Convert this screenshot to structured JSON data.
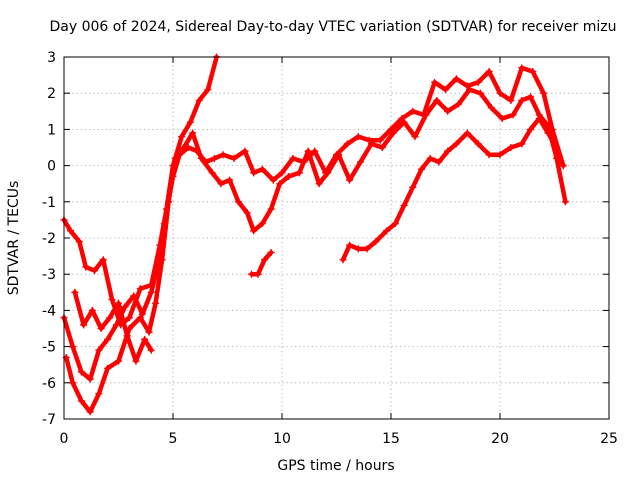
{
  "chart_data": {
    "type": "scatter",
    "title": "Day 006 of 2024, Sidereal Day-to-day VTEC variation (SDTVAR) for receiver mizu",
    "xlabel": "GPS time / hours",
    "ylabel": "SDTVAR / TECUs",
    "xlim": [
      0,
      25
    ],
    "ylim": [
      -7,
      3
    ],
    "xticks": [
      0,
      5,
      10,
      15,
      20,
      25
    ],
    "yticks": [
      -7,
      -6,
      -5,
      -4,
      -3,
      -2,
      -1,
      0,
      1,
      2,
      3
    ],
    "grid": true,
    "marker_color": "#ff0000",
    "marker": "plus",
    "series": [
      {
        "points": [
          [
            0.0,
            -1.5
          ],
          [
            0.3,
            -1.8
          ],
          [
            0.7,
            -2.1
          ],
          [
            1.0,
            -2.8
          ],
          [
            1.4,
            -2.9
          ],
          [
            1.8,
            -2.6
          ],
          [
            2.2,
            -3.7
          ],
          [
            2.6,
            -4.4
          ],
          [
            3.0,
            -4.2
          ],
          [
            3.5,
            -3.4
          ],
          [
            4.0,
            -3.3
          ],
          [
            4.4,
            -2.2
          ],
          [
            4.7,
            -1.2
          ],
          [
            5.0,
            0.0
          ],
          [
            5.4,
            0.8
          ],
          [
            5.8,
            1.2
          ],
          [
            6.2,
            1.8
          ],
          [
            6.6,
            2.1
          ],
          [
            7.0,
            3.0
          ]
        ]
      },
      {
        "points": [
          [
            0.0,
            -4.2
          ],
          [
            0.4,
            -5.0
          ],
          [
            0.8,
            -5.7
          ],
          [
            1.2,
            -5.9
          ],
          [
            1.6,
            -5.1
          ],
          [
            2.0,
            -4.8
          ],
          [
            2.4,
            -4.4
          ],
          [
            2.8,
            -3.9
          ],
          [
            3.2,
            -3.6
          ],
          [
            3.6,
            -4.1
          ],
          [
            4.0,
            -3.5
          ],
          [
            4.3,
            -2.8
          ],
          [
            4.6,
            -1.6
          ],
          [
            5.0,
            -0.3
          ],
          [
            5.3,
            0.3
          ],
          [
            5.7,
            0.5
          ],
          [
            6.1,
            0.4
          ],
          [
            6.5,
            0.1
          ],
          [
            6.9,
            0.2
          ],
          [
            7.3,
            0.3
          ],
          [
            7.8,
            0.2
          ],
          [
            8.3,
            0.4
          ],
          [
            8.7,
            -0.2
          ],
          [
            9.1,
            -0.1
          ],
          [
            9.6,
            -0.4
          ],
          [
            10.0,
            -0.2
          ],
          [
            10.5,
            0.2
          ],
          [
            11.0,
            0.1
          ],
          [
            11.5,
            0.4
          ],
          [
            12.0,
            -0.2
          ],
          [
            12.5,
            0.3
          ],
          [
            13.0,
            0.6
          ],
          [
            13.5,
            0.8
          ],
          [
            14.0,
            0.7
          ],
          [
            14.5,
            0.7
          ],
          [
            15.0,
            1.0
          ],
          [
            15.5,
            1.3
          ],
          [
            16.0,
            1.5
          ],
          [
            16.5,
            1.4
          ],
          [
            17.0,
            2.3
          ],
          [
            17.5,
            2.1
          ],
          [
            18.0,
            2.4
          ],
          [
            18.5,
            2.2
          ],
          [
            19.0,
            2.3
          ],
          [
            19.5,
            2.6
          ],
          [
            20.0,
            2.0
          ],
          [
            20.5,
            1.8
          ],
          [
            21.0,
            2.7
          ],
          [
            21.5,
            2.6
          ],
          [
            22.0,
            2.0
          ],
          [
            22.4,
            1.0
          ],
          [
            22.9,
            0.0
          ]
        ]
      },
      {
        "points": [
          [
            0.1,
            -5.3
          ],
          [
            0.4,
            -6.0
          ],
          [
            0.8,
            -6.5
          ],
          [
            1.2,
            -6.8
          ],
          [
            1.6,
            -6.3
          ],
          [
            2.0,
            -5.6
          ],
          [
            2.5,
            -5.4
          ],
          [
            3.0,
            -4.5
          ],
          [
            3.5,
            -4.2
          ],
          [
            3.9,
            -4.6
          ],
          [
            4.2,
            -3.8
          ],
          [
            4.5,
            -2.6
          ],
          [
            4.8,
            -1.0
          ],
          [
            5.1,
            0.2
          ],
          [
            5.5,
            0.5
          ],
          [
            5.9,
            0.9
          ],
          [
            6.3,
            0.2
          ],
          [
            6.8,
            -0.2
          ],
          [
            7.2,
            -0.5
          ],
          [
            7.6,
            -0.4
          ],
          [
            8.0,
            -1.0
          ],
          [
            8.4,
            -1.3
          ],
          [
            8.7,
            -1.8
          ],
          [
            9.1,
            -1.6
          ],
          [
            9.5,
            -1.2
          ],
          [
            9.9,
            -0.5
          ],
          [
            10.3,
            -0.3
          ],
          [
            10.8,
            -0.2
          ],
          [
            11.2,
            0.4
          ],
          [
            11.7,
            -0.5
          ],
          [
            12.1,
            -0.2
          ],
          [
            12.6,
            0.3
          ],
          [
            13.1,
            -0.4
          ],
          [
            13.6,
            0.1
          ],
          [
            14.1,
            0.6
          ],
          [
            14.6,
            0.5
          ],
          [
            15.1,
            0.9
          ],
          [
            15.6,
            1.2
          ],
          [
            16.1,
            0.8
          ],
          [
            16.6,
            1.4
          ],
          [
            17.1,
            1.8
          ],
          [
            17.6,
            1.5
          ],
          [
            18.1,
            1.7
          ],
          [
            18.6,
            2.1
          ],
          [
            19.1,
            2.0
          ],
          [
            19.6,
            1.6
          ],
          [
            20.1,
            1.3
          ],
          [
            20.6,
            1.4
          ],
          [
            21.0,
            1.8
          ],
          [
            21.4,
            1.9
          ],
          [
            21.8,
            1.4
          ],
          [
            22.2,
            1.1
          ],
          [
            22.6,
            0.2
          ],
          [
            23.0,
            -1.0
          ]
        ]
      },
      {
        "points": [
          [
            0.5,
            -3.5
          ],
          [
            0.9,
            -4.4
          ],
          [
            1.3,
            -4.0
          ],
          [
            1.7,
            -4.5
          ],
          [
            2.1,
            -4.2
          ],
          [
            2.5,
            -3.8
          ],
          [
            2.9,
            -4.7
          ],
          [
            3.3,
            -5.4
          ],
          [
            3.7,
            -4.8
          ],
          [
            4.0,
            -5.1
          ]
        ]
      },
      {
        "points": [
          [
            8.6,
            -3.0
          ],
          [
            8.9,
            -3.0
          ],
          [
            9.2,
            -2.6
          ],
          [
            9.5,
            -2.4
          ]
        ]
      },
      {
        "points": [
          [
            12.8,
            -2.6
          ],
          [
            13.1,
            -2.2
          ],
          [
            13.5,
            -2.3
          ],
          [
            13.9,
            -2.3
          ],
          [
            14.3,
            -2.1
          ],
          [
            14.8,
            -1.8
          ],
          [
            15.2,
            -1.6
          ],
          [
            15.6,
            -1.1
          ],
          [
            16.0,
            -0.6
          ],
          [
            16.4,
            -0.1
          ],
          [
            16.8,
            0.2
          ],
          [
            17.2,
            0.1
          ],
          [
            17.6,
            0.4
          ],
          [
            18.0,
            0.6
          ],
          [
            18.5,
            0.9
          ],
          [
            19.0,
            0.6
          ],
          [
            19.5,
            0.3
          ],
          [
            20.0,
            0.3
          ],
          [
            20.5,
            0.5
          ],
          [
            21.0,
            0.6
          ],
          [
            21.4,
            1.0
          ],
          [
            21.8,
            1.3
          ],
          [
            22.2,
            0.9
          ],
          [
            22.6,
            0.5
          ],
          [
            22.9,
            0.0
          ]
        ]
      }
    ]
  }
}
